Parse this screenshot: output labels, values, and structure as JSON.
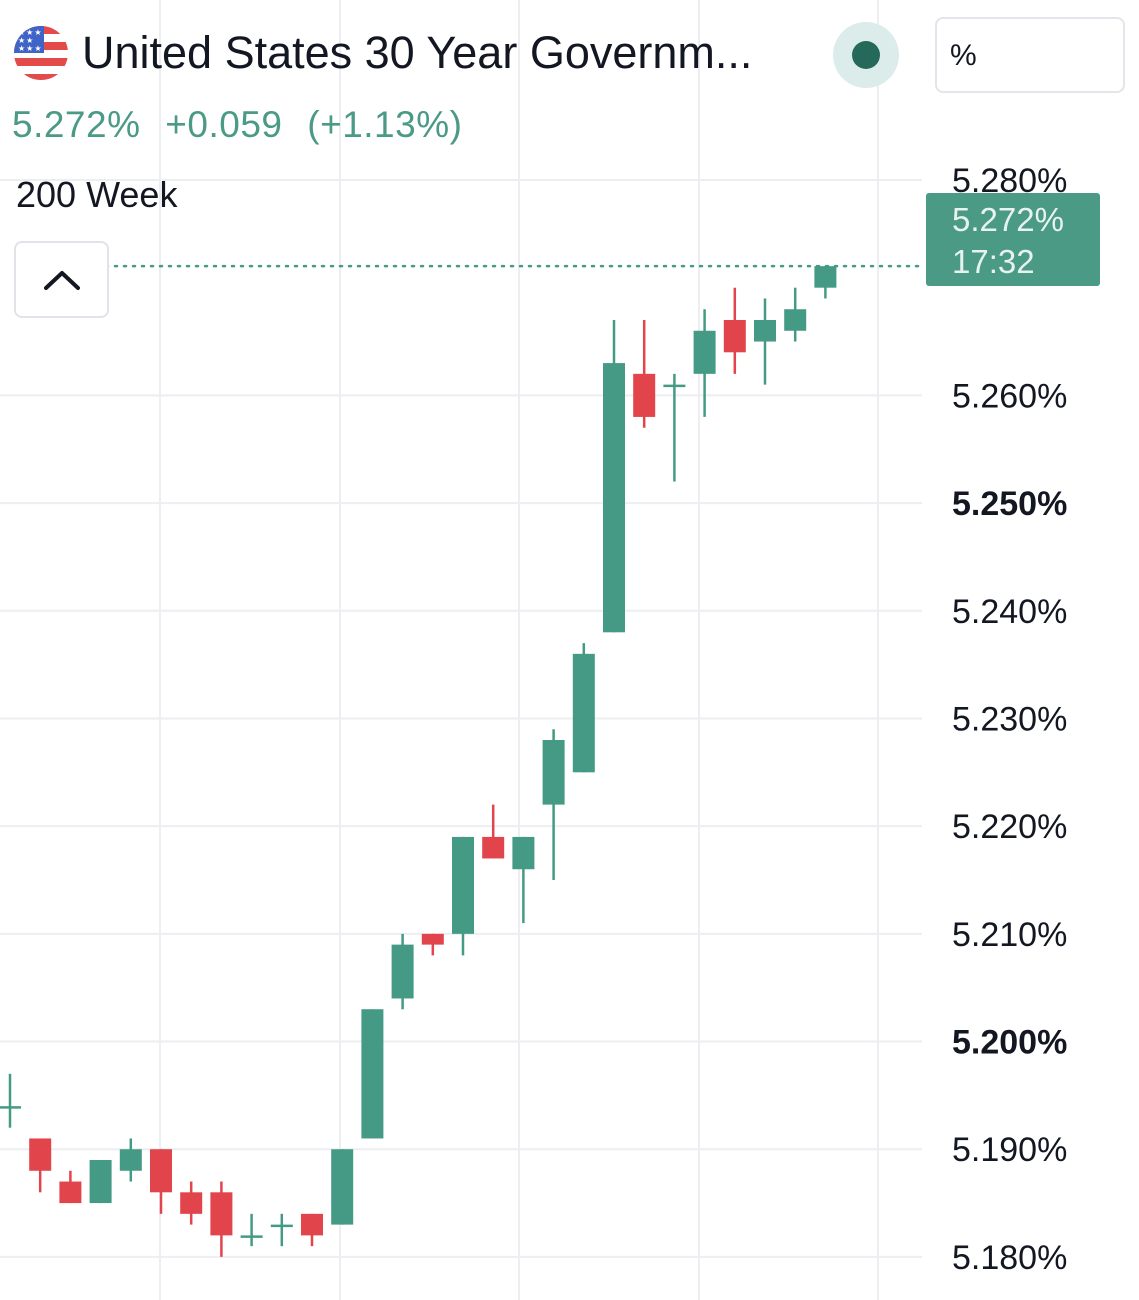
{
  "header": {
    "flag_icon": "us-flag-icon",
    "title": "United States 30 Year Governm...",
    "status_icon": "market-status-dot-icon",
    "unit": "%"
  },
  "quote": {
    "last": "5.272%",
    "change": "+0.059",
    "change_pct": "(+1.13%)",
    "color": "#4a9a86"
  },
  "interval": "200 Week",
  "collapse_icon": "chevron-up-icon",
  "price_label": {
    "value": "5.272%",
    "time": "17:32"
  },
  "colors": {
    "up": "#449a84",
    "down": "#e2444b",
    "grid": "#eceef1"
  },
  "chart_data": {
    "type": "candlestick",
    "ylim": [
      5.176,
      5.2865
    ],
    "y_ticks": [
      {
        "value": 5.28,
        "label": "5.280%",
        "bold": false
      },
      {
        "value": 5.26,
        "label": "5.260%",
        "bold": false
      },
      {
        "value": 5.25,
        "label": "5.250%",
        "bold": true
      },
      {
        "value": 5.24,
        "label": "5.240%",
        "bold": false
      },
      {
        "value": 5.23,
        "label": "5.230%",
        "bold": false
      },
      {
        "value": 5.22,
        "label": "5.220%",
        "bold": false
      },
      {
        "value": 5.21,
        "label": "5.210%",
        "bold": false
      },
      {
        "value": 5.2,
        "label": "5.200%",
        "bold": true
      },
      {
        "value": 5.19,
        "label": "5.190%",
        "bold": false
      },
      {
        "value": 5.18,
        "label": "5.180%",
        "bold": false
      }
    ],
    "last_price": 5.272,
    "candles": [
      {
        "o": 5.194,
        "h": 5.197,
        "l": 5.192,
        "c": 5.194
      },
      {
        "o": 5.191,
        "h": 5.191,
        "l": 5.186,
        "c": 5.188
      },
      {
        "o": 5.187,
        "h": 5.188,
        "l": 5.185,
        "c": 5.185
      },
      {
        "o": 5.185,
        "h": 5.189,
        "l": 5.185,
        "c": 5.189
      },
      {
        "o": 5.188,
        "h": 5.191,
        "l": 5.187,
        "c": 5.19
      },
      {
        "o": 5.19,
        "h": 5.19,
        "l": 5.184,
        "c": 5.186
      },
      {
        "o": 5.186,
        "h": 5.187,
        "l": 5.183,
        "c": 5.184
      },
      {
        "o": 5.186,
        "h": 5.187,
        "l": 5.18,
        "c": 5.182
      },
      {
        "o": 5.182,
        "h": 5.184,
        "l": 5.181,
        "c": 5.182
      },
      {
        "o": 5.183,
        "h": 5.184,
        "l": 5.181,
        "c": 5.183
      },
      {
        "o": 5.184,
        "h": 5.184,
        "l": 5.181,
        "c": 5.182
      },
      {
        "o": 5.183,
        "h": 5.19,
        "l": 5.183,
        "c": 5.19
      },
      {
        "o": 5.191,
        "h": 5.203,
        "l": 5.191,
        "c": 5.203
      },
      {
        "o": 5.204,
        "h": 5.21,
        "l": 5.203,
        "c": 5.209
      },
      {
        "o": 5.21,
        "h": 5.21,
        "l": 5.208,
        "c": 5.209
      },
      {
        "o": 5.21,
        "h": 5.219,
        "l": 5.208,
        "c": 5.219
      },
      {
        "o": 5.219,
        "h": 5.222,
        "l": 5.217,
        "c": 5.217
      },
      {
        "o": 5.216,
        "h": 5.219,
        "l": 5.211,
        "c": 5.219
      },
      {
        "o": 5.222,
        "h": 5.229,
        "l": 5.215,
        "c": 5.228
      },
      {
        "o": 5.225,
        "h": 5.237,
        "l": 5.225,
        "c": 5.236
      },
      {
        "o": 5.238,
        "h": 5.267,
        "l": 5.238,
        "c": 5.263
      },
      {
        "o": 5.262,
        "h": 5.267,
        "l": 5.257,
        "c": 5.258
      },
      {
        "o": 5.261,
        "h": 5.262,
        "l": 5.252,
        "c": 5.261
      },
      {
        "o": 5.262,
        "h": 5.268,
        "l": 5.258,
        "c": 5.266
      },
      {
        "o": 5.267,
        "h": 5.27,
        "l": 5.262,
        "c": 5.264
      },
      {
        "o": 5.265,
        "h": 5.269,
        "l": 5.261,
        "c": 5.267
      },
      {
        "o": 5.266,
        "h": 5.27,
        "l": 5.265,
        "c": 5.268
      },
      {
        "o": 5.27,
        "h": 5.272,
        "l": 5.269,
        "c": 5.272
      }
    ]
  }
}
